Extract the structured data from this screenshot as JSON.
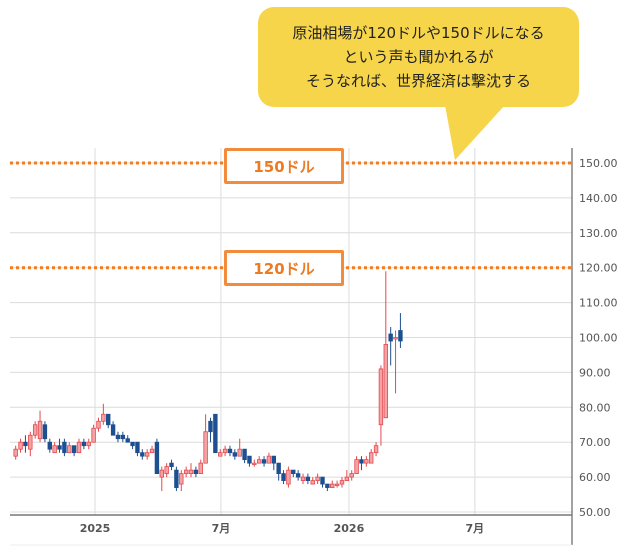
{
  "callout": {
    "lines": [
      "原油相場が120ドルや150ドルになる",
      "という声も聞かれるが",
      "そうなれば、世界経済は撃沈する"
    ],
    "color": "#f6d54b"
  },
  "levels": [
    {
      "value": 150,
      "label": "150ドル"
    },
    {
      "value": 120,
      "label": "120ドル"
    }
  ],
  "chart_data": {
    "type": "candlestick",
    "ylim": [
      50,
      155
    ],
    "y_ticks": [
      50,
      60,
      70,
      80,
      90,
      100,
      110,
      120,
      130,
      140,
      150
    ],
    "y_tick_labels": [
      "50.00",
      "60.00",
      "70.00",
      "80.00",
      "90.00",
      "100.00",
      "110.00",
      "120.00",
      "130.00",
      "140.00",
      "150.00"
    ],
    "x_ticks": [
      {
        "date": "2025-01-01",
        "label": "2025"
      },
      {
        "date": "2025-07-01",
        "label": "7月"
      },
      {
        "date": "2026-01-01",
        "label": "2026"
      },
      {
        "date": "2026-07-01",
        "label": "7月"
      }
    ],
    "xlim": [
      "2024-09-01",
      "2026-08-31"
    ],
    "grid": true,
    "colors": {
      "up": "#e5484d",
      "up_fill": "#f4a3a5",
      "down": "#1d4f91",
      "level": "#f07d22"
    },
    "candles_fields": [
      "date",
      "open",
      "high",
      "low",
      "close"
    ],
    "candles": [
      [
        "2024-09-09",
        66,
        69,
        65,
        68
      ],
      [
        "2024-09-16",
        68,
        71,
        67,
        70
      ],
      [
        "2024-09-23",
        70,
        72,
        67,
        69
      ],
      [
        "2024-09-30",
        68,
        73,
        66,
        72
      ],
      [
        "2024-10-07",
        72,
        76,
        71,
        75
      ],
      [
        "2024-10-14",
        71,
        79,
        70,
        76
      ],
      [
        "2024-10-21",
        75,
        76,
        70,
        71
      ],
      [
        "2024-10-28",
        70,
        71,
        67,
        68
      ],
      [
        "2024-11-04",
        67,
        70,
        67,
        69
      ],
      [
        "2024-11-11",
        69,
        71,
        67,
        68
      ],
      [
        "2024-11-18",
        70,
        71,
        66,
        67
      ],
      [
        "2024-11-25",
        67,
        70,
        67,
        69
      ],
      [
        "2024-12-02",
        69,
        69,
        66,
        67
      ],
      [
        "2024-12-09",
        67,
        71,
        67,
        70
      ],
      [
        "2024-12-16",
        70,
        71,
        68,
        69
      ],
      [
        "2024-12-23",
        69,
        71,
        68,
        70
      ],
      [
        "2024-12-30",
        70,
        75,
        70,
        74
      ],
      [
        "2025-01-06",
        74,
        77,
        73,
        76
      ],
      [
        "2025-01-13",
        76,
        81,
        75,
        78
      ],
      [
        "2025-01-20",
        78,
        78,
        74,
        75
      ],
      [
        "2025-01-27",
        75,
        76,
        72,
        72
      ],
      [
        "2025-02-03",
        72,
        73,
        70,
        71
      ],
      [
        "2025-02-10",
        72,
        73,
        70,
        71
      ],
      [
        "2025-02-17",
        71,
        72,
        70,
        70
      ],
      [
        "2025-02-24",
        70,
        70,
        68,
        69
      ],
      [
        "2025-03-03",
        70,
        70,
        66,
        67
      ],
      [
        "2025-03-10",
        67,
        68,
        65,
        66
      ],
      [
        "2025-03-17",
        66,
        68,
        65,
        67
      ],
      [
        "2025-03-24",
        67,
        69,
        67,
        68
      ],
      [
        "2025-03-31",
        70,
        71,
        61,
        61
      ],
      [
        "2025-04-07",
        60,
        63,
        56,
        62
      ],
      [
        "2025-04-14",
        61,
        64,
        60,
        63
      ],
      [
        "2025-04-21",
        64,
        65,
        62,
        63
      ],
      [
        "2025-04-28",
        62,
        63,
        56,
        57
      ],
      [
        "2025-05-05",
        58,
        62,
        56,
        61
      ],
      [
        "2025-05-12",
        61,
        63,
        60,
        62
      ],
      [
        "2025-05-19",
        61,
        64,
        60,
        62
      ],
      [
        "2025-05-26",
        62,
        63,
        60,
        61
      ],
      [
        "2025-06-02",
        61,
        65,
        61,
        64
      ],
      [
        "2025-06-09",
        64,
        78,
        64,
        73
      ],
      [
        "2025-06-16",
        76,
        77,
        70,
        73
      ],
      [
        "2025-06-23",
        78,
        78,
        67,
        67
      ],
      [
        "2025-06-30",
        66,
        68,
        66,
        67
      ],
      [
        "2025-07-07",
        67,
        69,
        66,
        68
      ],
      [
        "2025-07-14",
        68,
        69,
        66,
        67
      ],
      [
        "2025-07-21",
        67,
        68,
        65,
        66
      ],
      [
        "2025-07-28",
        66,
        71,
        66,
        68
      ],
      [
        "2025-08-04",
        68,
        68,
        64,
        65
      ],
      [
        "2025-08-11",
        66,
        66,
        63,
        64
      ],
      [
        "2025-08-18",
        64,
        65,
        63,
        64
      ],
      [
        "2025-08-25",
        64,
        66,
        64,
        65
      ],
      [
        "2025-09-01",
        65,
        66,
        63,
        64
      ],
      [
        "2025-09-08",
        64,
        67,
        64,
        66
      ],
      [
        "2025-09-15",
        66,
        66,
        62,
        64
      ],
      [
        "2025-09-22",
        64,
        64,
        59,
        61
      ],
      [
        "2025-09-29",
        61,
        62,
        58,
        59
      ],
      [
        "2025-10-06",
        58,
        63,
        57,
        62
      ],
      [
        "2025-10-13",
        62,
        62,
        60,
        61
      ],
      [
        "2025-10-20",
        61,
        62,
        59,
        60
      ],
      [
        "2025-10-27",
        59,
        61,
        58,
        60
      ],
      [
        "2025-11-03",
        60,
        61,
        58,
        59
      ],
      [
        "2025-11-10",
        58,
        60,
        58,
        59
      ],
      [
        "2025-11-17",
        59,
        61,
        58,
        60
      ],
      [
        "2025-11-24",
        60,
        60,
        57,
        58
      ],
      [
        "2025-12-01",
        58,
        58,
        56,
        57
      ],
      [
        "2025-12-08",
        57,
        59,
        57,
        58
      ],
      [
        "2025-12-15",
        58,
        59,
        57,
        58
      ],
      [
        "2025-12-22",
        58,
        60,
        57,
        59
      ],
      [
        "2025-12-29",
        59,
        62,
        59,
        60
      ],
      [
        "2026-01-05",
        60,
        62,
        59,
        61
      ],
      [
        "2026-01-12",
        61,
        66,
        61,
        65
      ],
      [
        "2026-01-19",
        65,
        66,
        62,
        64
      ],
      [
        "2026-01-26",
        64,
        66,
        63,
        65
      ],
      [
        "2026-02-02",
        64,
        68,
        64,
        67
      ],
      [
        "2026-02-09",
        67,
        70,
        66,
        69
      ],
      [
        "2026-02-16",
        75,
        92,
        69,
        91
      ],
      [
        "2026-02-23",
        77,
        119,
        77,
        98
      ],
      [
        "2026-03-02",
        101,
        103,
        92,
        99
      ],
      [
        "2026-03-09",
        100,
        102,
        84,
        100
      ],
      [
        "2026-03-16",
        102,
        107,
        97,
        99
      ]
    ]
  }
}
